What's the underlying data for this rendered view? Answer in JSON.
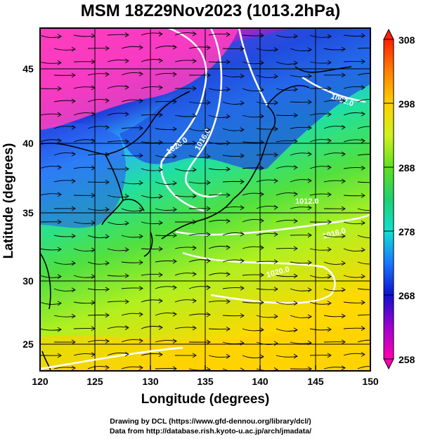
{
  "title": "MSM 18Z29Nov2023 (1013.2hPa)",
  "x_axis": {
    "label": "Longitude (degrees)",
    "ticks": [
      "120",
      "125",
      "130",
      "135",
      "140",
      "145",
      "150"
    ]
  },
  "y_axis": {
    "label": "Latitude  (degrees)",
    "ticks": [
      "25",
      "30",
      "35",
      "40",
      "45"
    ]
  },
  "colorbar": {
    "ticks": [
      "258",
      "268",
      "278",
      "288",
      "298",
      "308"
    ]
  },
  "contour_labels": [
    "1020.0",
    "1016.0",
    "1012.0",
    "1016.0",
    "1020.0",
    "1002.0"
  ],
  "credits": {
    "line1": "Drawing by DCL (https://www.gfd-dennou.org/library/dcl/)",
    "line2": "Data from http://database.rish.kyoto-u.ac.jp/arch/jmadata/"
  },
  "colors": {
    "cold": "#ff40c0",
    "mid": "#30c0ff",
    "warm": "#ffd000"
  }
}
